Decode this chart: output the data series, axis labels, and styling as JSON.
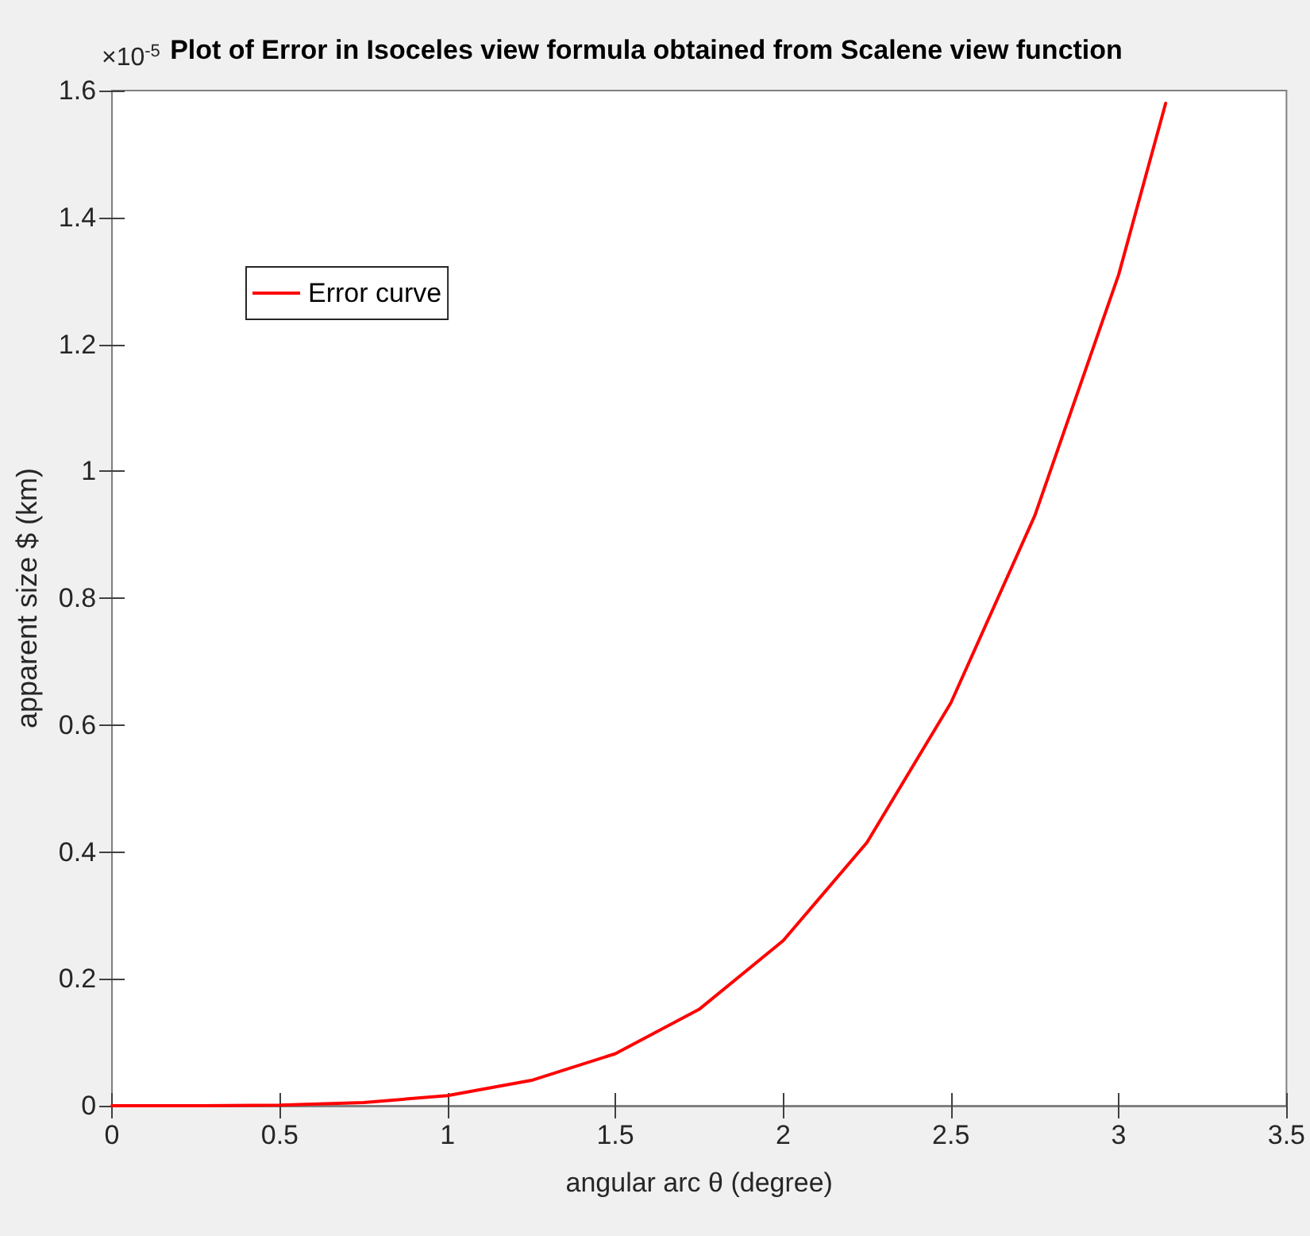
{
  "chart_data": {
    "type": "line",
    "title": "Plot of Error in Isoceles view formula obtained from Scalene view function",
    "xlabel": "angular arc θ (degree)",
    "ylabel": "apparent size $ (km)",
    "annotations": [
      "×10$^{-5}$"
    ],
    "x": [
      0,
      0.25,
      0.5,
      0.75,
      1,
      1.25,
      1.5,
      1.75,
      2,
      2.25,
      2.5,
      2.75,
      3,
      3.14
    ],
    "series": [
      {
        "name": "Error curve",
        "color": "#ff0000",
        "values": [
          0,
          0,
          0.001,
          0.005,
          0.016,
          0.04,
          0.082,
          0.152,
          0.26,
          0.415,
          0.635,
          0.93,
          1.31,
          1.58
        ]
      }
    ],
    "xlim": [
      0,
      3.5
    ],
    "xticks": [
      0,
      0.5,
      1,
      1.5,
      2,
      2.5,
      3,
      3.5
    ],
    "ylim": [
      0,
      1.6
    ],
    "yticks": [
      0,
      0.2,
      0.4,
      0.6,
      0.8,
      1,
      1.2,
      1.4,
      1.6
    ],
    "grid": false,
    "legend": "top left",
    "marker": "none",
    "line_style": "solid"
  }
}
